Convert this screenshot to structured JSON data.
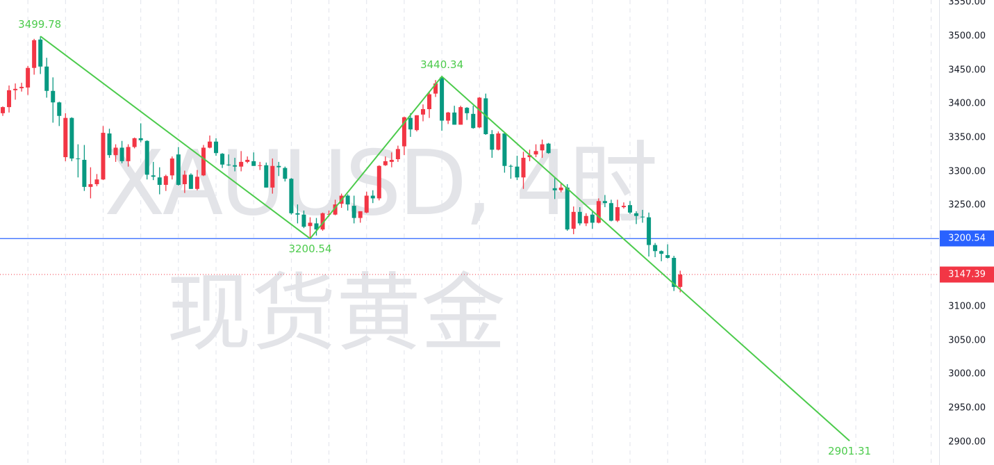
{
  "watermark": {
    "line1": "XAUUSD, 4时",
    "line2": "现货黄金"
  },
  "colors": {
    "up": "#f23645",
    "down": "#089981",
    "trendline": "#4ccb4c",
    "current_line": "#2962ff",
    "last_price": "#f23645",
    "grid": "#e0e3eb"
  },
  "chart_data": {
    "type": "candlestick",
    "title": "",
    "xlabel": "",
    "ylabel": "",
    "ylim": [
      2900,
      3550
    ],
    "y_ticks": [
      "2900.00",
      "2950.00",
      "3000.00",
      "3050.00",
      "3100.00",
      "3150.00",
      "3200.00",
      "3250.00",
      "3300.00",
      "3350.00",
      "3400.00",
      "3450.00",
      "3500.00",
      "3550.00"
    ],
    "grid": "vertical dashed",
    "candles_ohlc": [
      [
        3386,
        3396,
        3382,
        3395
      ],
      [
        3395,
        3427,
        3387,
        3420
      ],
      [
        3420,
        3430,
        3406,
        3422
      ],
      [
        3423,
        3431,
        3418,
        3425
      ],
      [
        3424,
        3456,
        3413,
        3453
      ],
      [
        3453,
        3496,
        3443,
        3494
      ],
      [
        3495,
        3499.78,
        3444,
        3455
      ],
      [
        3455,
        3468,
        3409,
        3419
      ],
      [
        3419,
        3439,
        3372,
        3402
      ],
      [
        3402,
        3403,
        3367,
        3382
      ],
      [
        3321,
        3386,
        3315,
        3379
      ],
      [
        3379,
        3380,
        3315,
        3319
      ],
      [
        3319,
        3340,
        3291,
        3318
      ],
      [
        3317,
        3339,
        3271,
        3277
      ],
      [
        3277,
        3306,
        3260,
        3281
      ],
      [
        3281,
        3296,
        3278,
        3288
      ],
      [
        3288,
        3367,
        3287,
        3357
      ],
      [
        3356,
        3363,
        3320,
        3324
      ],
      [
        3324,
        3340,
        3314,
        3335
      ],
      [
        3335,
        3345,
        3312,
        3315
      ],
      [
        3315,
        3340,
        3307,
        3336
      ],
      [
        3336,
        3350,
        3334,
        3349
      ],
      [
        3349,
        3371,
        3343,
        3346
      ],
      [
        3345,
        3346,
        3288,
        3295
      ],
      [
        3294,
        3314,
        3287,
        3292
      ],
      [
        3291,
        3306,
        3266,
        3280
      ],
      [
        3280,
        3295,
        3271,
        3293
      ],
      [
        3294,
        3322,
        3288,
        3319
      ],
      [
        3325,
        3336,
        3279,
        3280
      ],
      [
        3281,
        3301,
        3268,
        3295
      ],
      [
        3295,
        3297,
        3274,
        3274
      ],
      [
        3274,
        3302,
        3272,
        3292
      ],
      [
        3294,
        3339,
        3293,
        3335
      ],
      [
        3335,
        3353,
        3334,
        3344
      ],
      [
        3344,
        3349,
        3323,
        3327
      ],
      [
        3326,
        3327,
        3305,
        3310
      ],
      [
        3310,
        3325,
        3308,
        3309
      ],
      [
        3309,
        3320,
        3300,
        3307
      ],
      [
        3307,
        3330,
        3300,
        3314
      ],
      [
        3314,
        3322,
        3312,
        3317
      ],
      [
        3315,
        3328,
        3308,
        3308
      ],
      [
        3308,
        3314,
        3302,
        3309
      ],
      [
        3309,
        3313,
        3276,
        3276
      ],
      [
        3276,
        3319,
        3267,
        3308
      ],
      [
        3308,
        3314,
        3293,
        3306
      ],
      [
        3305,
        3307,
        3285,
        3289
      ],
      [
        3289,
        3290,
        3236,
        3238
      ],
      [
        3238,
        3251,
        3223,
        3236
      ],
      [
        3236,
        3242,
        3216,
        3218
      ],
      [
        3219,
        3232,
        3200.54,
        3224
      ],
      [
        3223,
        3231,
        3205,
        3214
      ],
      [
        3214,
        3239,
        3212,
        3238
      ],
      [
        3236,
        3242,
        3233,
        3237
      ],
      [
        3236,
        3258,
        3235,
        3251
      ],
      [
        3252,
        3267,
        3246,
        3264
      ],
      [
        3264,
        3266,
        3242,
        3251
      ],
      [
        3249,
        3264,
        3223,
        3231
      ],
      [
        3231,
        3241,
        3224,
        3241
      ],
      [
        3239,
        3270,
        3238,
        3264
      ],
      [
        3264,
        3272,
        3253,
        3260
      ],
      [
        3260,
        3309,
        3257,
        3308
      ],
      [
        3309,
        3322,
        3308,
        3315
      ],
      [
        3314,
        3328,
        3306,
        3317
      ],
      [
        3318,
        3338,
        3314,
        3333
      ],
      [
        3337,
        3381,
        3324,
        3380
      ],
      [
        3379,
        3386,
        3351,
        3362
      ],
      [
        3361,
        3383,
        3359,
        3383
      ],
      [
        3384,
        3399,
        3374,
        3392
      ],
      [
        3392,
        3418,
        3379,
        3414
      ],
      [
        3415,
        3435,
        3410,
        3430
      ],
      [
        3439,
        3440.34,
        3360,
        3375
      ],
      [
        3375,
        3388,
        3370,
        3387
      ],
      [
        3387,
        3397,
        3369,
        3369
      ],
      [
        3369,
        3397,
        3369,
        3395
      ],
      [
        3394,
        3395,
        3376,
        3386
      ],
      [
        3385,
        3397,
        3363,
        3364
      ],
      [
        3365,
        3410,
        3364,
        3409
      ],
      [
        3408,
        3415,
        3354,
        3355
      ],
      [
        3355,
        3361,
        3320,
        3332
      ],
      [
        3332,
        3359,
        3331,
        3356
      ],
      [
        3356,
        3357,
        3298,
        3308
      ],
      [
        3308,
        3310,
        3289,
        3307
      ],
      [
        3307,
        3323,
        3287,
        3291
      ],
      [
        3291,
        3329,
        3274,
        3320
      ],
      [
        3321,
        3332,
        3315,
        3324
      ],
      [
        3325,
        3340,
        3321,
        3330
      ],
      [
        3331,
        3347,
        3320,
        3340
      ],
      [
        3341,
        3342,
        3326,
        3327
      ],
      [
        3275,
        3291,
        3259,
        3272
      ],
      [
        3272,
        3283,
        3269,
        3276
      ],
      [
        3276,
        3281,
        3212,
        3214
      ],
      [
        3215,
        3248,
        3207,
        3240
      ],
      [
        3240,
        3247,
        3220,
        3223
      ],
      [
        3223,
        3238,
        3219,
        3234
      ],
      [
        3236,
        3242,
        3215,
        3224
      ],
      [
        3224,
        3260,
        3223,
        3256
      ],
      [
        3256,
        3265,
        3247,
        3253
      ],
      [
        3253,
        3258,
        3226,
        3227
      ],
      [
        3227,
        3258,
        3225,
        3247
      ],
      [
        3247,
        3254,
        3245,
        3249
      ],
      [
        3250,
        3256,
        3237,
        3239
      ],
      [
        3238,
        3241,
        3222,
        3234
      ],
      [
        3233,
        3243,
        3224,
        3232
      ],
      [
        3232,
        3239,
        3174,
        3191
      ],
      [
        3191,
        3194,
        3173,
        3182
      ],
      [
        3182,
        3183,
        3167,
        3178
      ],
      [
        3176,
        3192,
        3171,
        3172
      ],
      [
        3172,
        3175,
        3123,
        3129
      ],
      [
        3129,
        3153,
        3121,
        3147.39
      ]
    ],
    "trendline": [
      {
        "bar": 6,
        "price": 3499.78,
        "label": "3499.78",
        "label_pos": "above"
      },
      {
        "bar": 49,
        "price": 3200.54,
        "label": "3200.54",
        "label_pos": "below"
      },
      {
        "bar": 70,
        "price": 3440.34,
        "label": "3440.34",
        "label_pos": "above"
      },
      {
        "bar": 135,
        "price": 2901.31,
        "label": "2901.31",
        "label_pos": "below"
      }
    ],
    "horizontal_line": {
      "price": 3200.54,
      "label": "3200.54"
    },
    "last_price": {
      "price": 3147.39,
      "label": "3147.39"
    }
  }
}
